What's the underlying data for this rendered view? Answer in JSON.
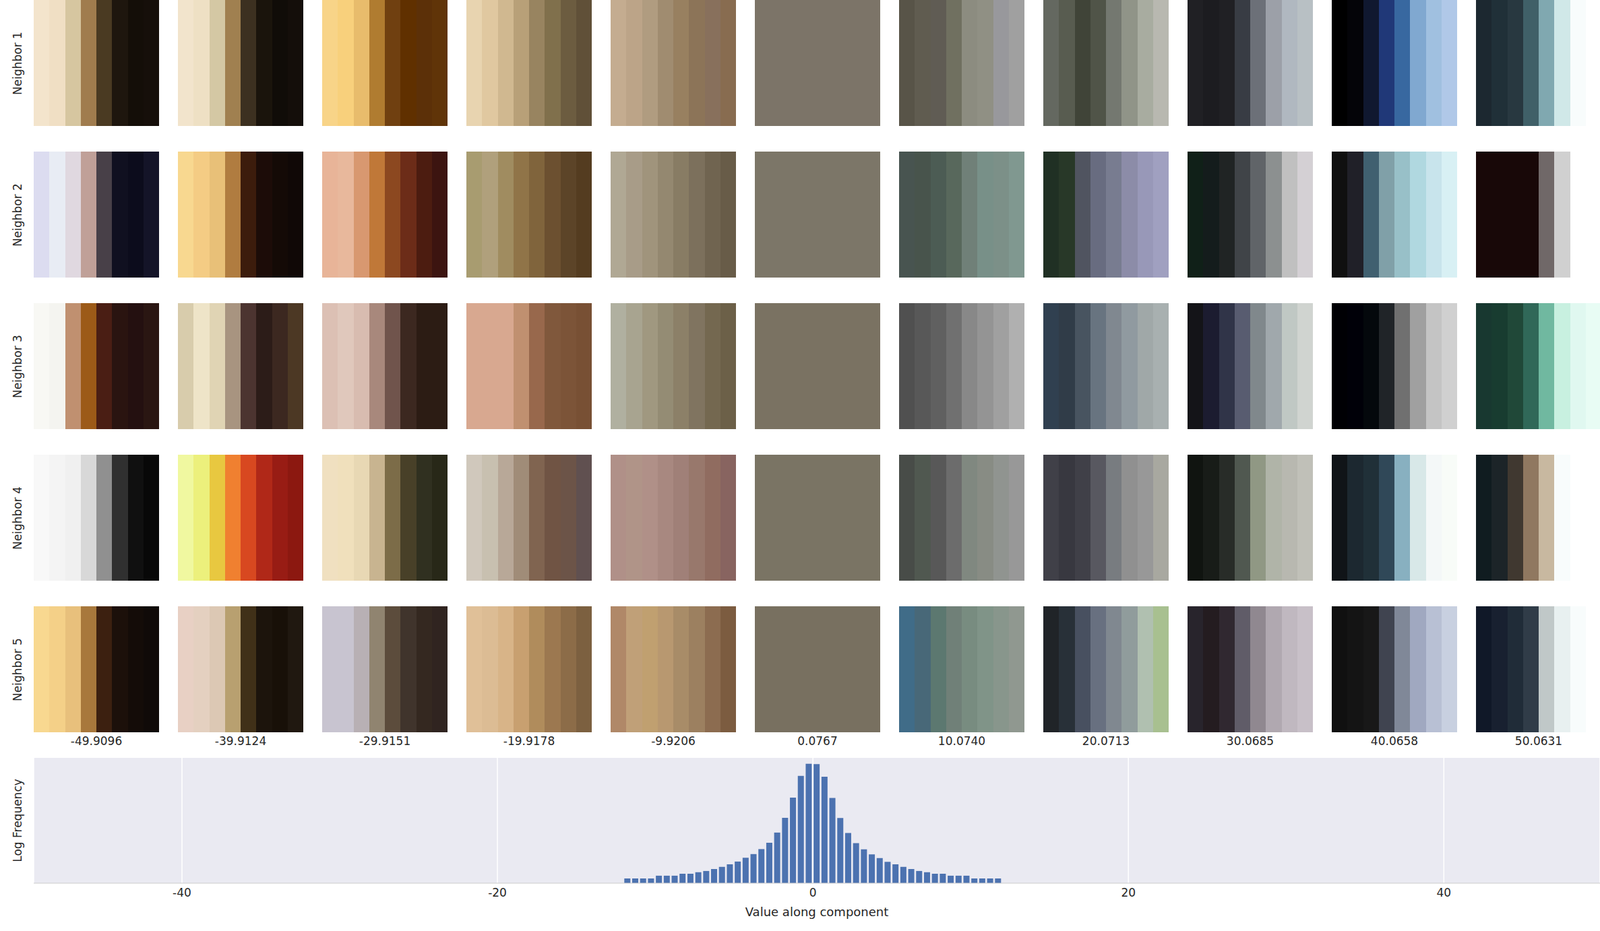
{
  "patches": {
    "row_labels": [
      "Neighbor 1",
      "Neighbor 2",
      "Neighbor 3",
      "Neighbor 4",
      "Neighbor 5"
    ],
    "column_values": [
      -49.9096,
      -39.9124,
      -29.9151,
      -19.9178,
      -9.9206,
      0.0767,
      {
        "value": 10.074,
        "label": "10.0740"
      },
      20.0713,
      30.0685,
      40.0658,
      50.0631
    ],
    "columns": [
      [
        [
          "#f3e4cc",
          "#f0dfc4",
          "#d6c6a0",
          "#a07c4e",
          "#4a3a22",
          "#1e160e",
          "#140e08",
          "#160f0a"
        ],
        [
          "#dcdcf0",
          "#e8ecf4",
          "#e0d8e0",
          "#c0a098",
          "#484048",
          "#101020",
          "#0c0c1c",
          "#141428"
        ],
        [
          "#f8f8f4",
          "#f4f4f0",
          "#c09070",
          "#9c5a18",
          "#4a1e14",
          "#2a1410",
          "#241010",
          "#2a1612"
        ],
        [
          "#f8f8f8",
          "#f4f4f4",
          "#f0f0f0",
          "#d8d8d8",
          "#909090",
          "#303030",
          "#101010",
          "#080808"
        ],
        [
          "#f8d890",
          "#f4d088",
          "#e8c07c",
          "#a8783c",
          "#3c2010",
          "#1c100a",
          "#140c08",
          "#100a08"
        ]
      ],
      [
        [
          "#f2e4cc",
          "#eee0c4",
          "#d4c8a4",
          "#a08050",
          "#3c3020",
          "#1a140c",
          "#100c08",
          "#140e0a"
        ],
        [
          "#f8d890",
          "#f4cc84",
          "#e8c078",
          "#b07c40",
          "#3c1c0c",
          "#1c0c08",
          "#140a06",
          "#100806"
        ],
        [
          "#d8ccac",
          "#eee4c8",
          "#e0d4b4",
          "#a89480",
          "#4c3430",
          "#2c1c18",
          "#3c2820",
          "#4c3824"
        ],
        [
          "#f0f8a0",
          "#ecf07c",
          "#e8c840",
          "#f08030",
          "#d84820",
          "#b02818",
          "#981c14",
          "#8c1810"
        ],
        [
          "#e8d0c4",
          "#e4d0c0",
          "#dcc8b4",
          "#b8a070",
          "#403018",
          "#1c140c",
          "#181008",
          "#201810"
        ]
      ],
      [
        [
          "#f8d488",
          "#f8d07c",
          "#e8bc6c",
          "#b07c30",
          "#704010",
          "#603000",
          "#5c3008",
          "#603408"
        ],
        [
          "#e8b498",
          "#e8b89c",
          "#d89870",
          "#c07838",
          "#8c4820",
          "#6c2c18",
          "#4c1c10",
          "#3c1410"
        ],
        [
          "#dcc0b4",
          "#e0c8bc",
          "#d8bcb0",
          "#a8887c",
          "#70544c",
          "#3c2820",
          "#2c1c14",
          "#2c1c14"
        ],
        [
          "#f0e0c0",
          "#f0e0bc",
          "#e8d8b4",
          "#c8b490",
          "#7c6c48",
          "#484028",
          "#303020",
          "#282818"
        ],
        [
          "#c8c4d0",
          "#c8c4d0",
          "#b8b0b4",
          "#908470",
          "#5c4c3c",
          "#40342c",
          "#342820",
          "#302420"
        ]
      ],
      [
        [
          "#e8d4b0",
          "#e0c8a0",
          "#d0b890",
          "#b8a078",
          "#988460",
          "#80704c",
          "#6c5c40",
          "#605038"
        ],
        [
          "#a89c70",
          "#b0a07c",
          "#a08c60",
          "#907448",
          "#80643c",
          "#6c5030",
          "#5c4428",
          "#543c20"
        ],
        [
          "#d8a890",
          "#d8a890",
          "#d8a890",
          "#c09070",
          "#98684c",
          "#80583c",
          "#7c5438",
          "#785034"
        ],
        [
          "#d0c8bc",
          "#c8c0b0",
          "#b8a898",
          "#a08c78",
          "#806450",
          "#705444",
          "#6c5448",
          "#605050"
        ],
        [
          "#e0c098",
          "#dcbc94",
          "#d8b488",
          "#c8a070",
          "#b08c5c",
          "#9c7850",
          "#8c6c48",
          "#7c6040"
        ]
      ],
      [
        [
          "#c4ac90",
          "#bca488",
          "#b09c80",
          "#a08c70",
          "#988060",
          "#8c7458",
          "#88705c",
          "#886c50"
        ],
        [
          "#b0a894",
          "#a89c88",
          "#a0947c",
          "#948870",
          "#887c64",
          "#7c705c",
          "#706450",
          "#685c48"
        ],
        [
          "#b0b0a0",
          "#a8a490",
          "#a09880",
          "#948c74",
          "#8c8068",
          "#807460",
          "#746850",
          "#6c6048"
        ],
        [
          "#b09088",
          "#b09488",
          "#b09088",
          "#a88880",
          "#a08078",
          "#98786c",
          "#906c60",
          "#886460"
        ],
        [
          "#b08868",
          "#c0a078",
          "#c0a070",
          "#b89870",
          "#a88c68",
          "#9c8060",
          "#8c6c50",
          "#7c5c40"
        ]
      ],
      [
        [
          "#7c7468",
          "#7c7468",
          "#7c7468",
          "#7c7468",
          "#7c7468",
          "#7c7468",
          "#7c7468",
          "#7c7468"
        ],
        [
          "#7c7668",
          "#7c7668",
          "#7c7668",
          "#7c7668",
          "#7c7668",
          "#7c7668",
          "#7c7668",
          "#7c7668"
        ],
        [
          "#7a7262",
          "#7a7262",
          "#7a7262",
          "#7a7262",
          "#7a7262",
          "#7a7262",
          "#7a7262",
          "#7a7262"
        ],
        [
          "#7a7464",
          "#7a7464",
          "#7a7464",
          "#7a7464",
          "#7a7464",
          "#7a7464",
          "#7a7464",
          "#7a7464"
        ],
        [
          "#787060",
          "#787060",
          "#787060",
          "#787060",
          "#787060",
          "#787060",
          "#787060",
          "#787060"
        ]
      ],
      [
        [
          "#585448",
          "#605c50",
          "#605c54",
          "#707060",
          "#8c8c80",
          "#909084",
          "#98989c",
          "#a0a0a0"
        ],
        [
          "#485450",
          "#48544c",
          "#4c5c54",
          "#58685c",
          "#708078",
          "#789088",
          "#7c9088",
          "#809890"
        ],
        [
          "#505050",
          "#585858",
          "#606060",
          "#707070",
          "#888888",
          "#949494",
          "#a0a0a0",
          "#b0b0b0"
        ],
        [
          "#484c48",
          "#505850",
          "#585858",
          "#6c6c6c",
          "#808880",
          "#888c84",
          "#909490",
          "#989898"
        ],
        [
          "#406c88",
          "#486878",
          "#5c7870",
          "#708078",
          "#788c80",
          "#809488",
          "#88968c",
          "#909890"
        ]
      ],
      [
        [
          "#646860",
          "#585c50",
          "#404438",
          "#505448",
          "#747870",
          "#909488",
          "#a8aca0",
          "#b8b8b0"
        ],
        [
          "#203024",
          "#283828",
          "#505460",
          "#686c80",
          "#787c90",
          "#8c8ca8",
          "#9898b8",
          "#a0a0c0"
        ],
        [
          "#304050",
          "#303c48",
          "#485460",
          "#687480",
          "#808890",
          "#909aa0",
          "#a0a8a8",
          "#a8b0b0"
        ],
        [
          "#404048",
          "#383840",
          "#404048",
          "#585860",
          "#787c80",
          "#909090",
          "#989898",
          "#a8a8a0"
        ],
        [
          "#202428",
          "#283038",
          "#485060",
          "#687080",
          "#808890",
          "#909c9c",
          "#b0c0b0",
          "#a8c090"
        ]
      ],
      [
        [
          "#202024",
          "#1c1c20",
          "#202024",
          "#383c44",
          "#6c7078",
          "#9ca0a8",
          "#b0b8c0",
          "#b8c0c4"
        ],
        [
          "#102018",
          "#141c1c",
          "#202424",
          "#404448",
          "#606468",
          "#8c9090",
          "#c0c0c0",
          "#d4d0d4"
        ],
        [
          "#141418",
          "#1c1c30",
          "#303448",
          "#585c70",
          "#80888c",
          "#a0a8ac",
          "#c0c8c4",
          "#d0d4d0"
        ],
        [
          "#101410",
          "#181c18",
          "#282c28",
          "#505850",
          "#909884",
          "#b0b4a8",
          "#b8b8b0",
          "#c0c0b8"
        ],
        [
          "#28242c",
          "#241c20",
          "#302830",
          "#605c68",
          "#908890",
          "#b0a8b0",
          "#c0b8c0",
          "#c8c0c8"
        ]
      ],
      [
        [
          "#000000",
          "#040408",
          "#101830",
          "#203878",
          "#3868a0",
          "#80a8d0",
          "#a0c0e0",
          "#b0c8e8"
        ],
        [
          "#101010",
          "#202028",
          "#406070",
          "#80a0a8",
          "#98c0c8",
          "#b0d8e0",
          "#c8e4ec",
          "#d8f0f4"
        ],
        [
          "#000004",
          "#000008",
          "#04080c",
          "#202428",
          "#707070",
          "#a0a0a0",
          "#c4c4c4",
          "#d0d0d0"
        ],
        [
          "#101418",
          "#1c2830",
          "#203038",
          "#304858",
          "#88b0c0",
          "#d8e8e8",
          "#f4f8f8",
          "#f8fcf8"
        ],
        [
          "#101010",
          "#141414",
          "#181818",
          "#404450",
          "#808898",
          "#a0a8c0",
          "#b8c0d4",
          "#c8d0e0"
        ]
      ],
      [
        [
          "#1c2830",
          "#203038",
          "#283840",
          "#406068",
          "#80a8b0",
          "#d0e8e8",
          "#f8fcfc",
          "#ffffff"
        ],
        [
          "#180808",
          "#180808",
          "#180808",
          "#180808",
          "#706868",
          "#d0d0d0",
          "#ffffff",
          "#ffffff"
        ],
        [
          "#183830",
          "#183c30",
          "#204838",
          "#306858",
          "#70b8a0",
          "#c8f0e0",
          "#e0f8f0",
          "#e8fcf4"
        ],
        [
          "#101c20",
          "#1c2428",
          "#403830",
          "#907860",
          "#c8b8a0",
          "#f8fcfc",
          "#ffffff",
          "#ffffff"
        ],
        [
          "#101828",
          "#182030",
          "#202c38",
          "#303c48",
          "#c0c8c8",
          "#e8f0f0",
          "#f8fcfc",
          "#ffffff"
        ]
      ]
    ]
  },
  "chart_data": {
    "type": "histogram",
    "x_label": "Value along component",
    "y_label": "Log Frequency",
    "bins": [
      -12,
      -11.5,
      -11,
      -10.5,
      -10,
      -9.5,
      -9,
      -8.5,
      -8,
      -7.5,
      -7,
      -6.5,
      -6,
      -5.5,
      -5,
      -4.5,
      -4,
      -3.5,
      -3,
      -2.5,
      -2,
      -1.5,
      -1,
      -0.5,
      0,
      0.5,
      1,
      1.5,
      2,
      2.5,
      3,
      3.5,
      4,
      4.5,
      5,
      5.5,
      6,
      6.5,
      7,
      7.5,
      8,
      8.5,
      9,
      9.5,
      10,
      10.5,
      11,
      11.5,
      12
    ],
    "counts": [
      2,
      2,
      2,
      2,
      3,
      3,
      3,
      4,
      4,
      5,
      6,
      8,
      11,
      16,
      24,
      42,
      72,
      150,
      380,
      1700,
      15000,
      290000,
      7000000,
      42000000,
      40000000,
      6300000,
      275000,
      14500,
      1600,
      360,
      145,
      69,
      40,
      23,
      16,
      11,
      8,
      6,
      5,
      4,
      4,
      3,
      3,
      3,
      2,
      2,
      2,
      2
    ],
    "color": "#4c72b0",
    "xlim": [
      -49.4,
      49.9
    ],
    "xticks": [
      -40,
      -20,
      0,
      20,
      40
    ],
    "ylim": [
      1,
      100000000
    ],
    "log": "y",
    "grid": true,
    "tick_labels": "x"
  }
}
